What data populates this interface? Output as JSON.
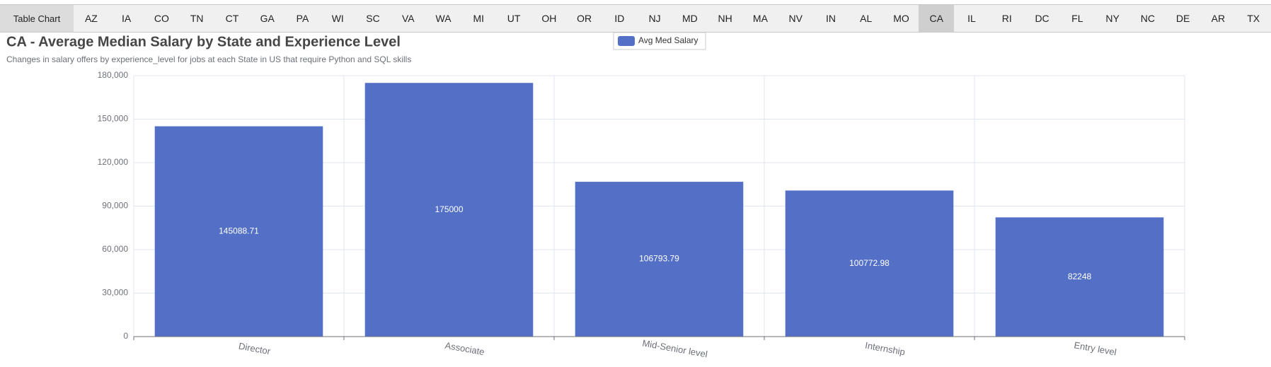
{
  "tabs": {
    "first_label": "Table Chart",
    "states": [
      "AZ",
      "IA",
      "CO",
      "TN",
      "CT",
      "GA",
      "PA",
      "WI",
      "SC",
      "VA",
      "WA",
      "MI",
      "UT",
      "OH",
      "OR",
      "ID",
      "NJ",
      "MD",
      "NH",
      "MA",
      "NV",
      "IN",
      "AL",
      "MO",
      "CA",
      "IL",
      "RI",
      "DC",
      "FL",
      "NY",
      "NC",
      "DE",
      "AR",
      "TX"
    ],
    "active": "CA"
  },
  "chart_data": {
    "type": "bar",
    "title": "CA - Average Median Salary by State and Experience Level",
    "subtitle": "Changes in salary offers by experience_level for jobs at each State in US that require Python and SQL skills",
    "categories": [
      "Director",
      "Associate",
      "Mid-Senior level",
      "Internship",
      "Entry level"
    ],
    "series": [
      {
        "name": "Avg Med Salary",
        "values": [
          145088.71,
          175000,
          106793.79,
          100772.98,
          82248
        ],
        "color": "#5470c6"
      }
    ],
    "data_labels": [
      "145088.71",
      "175000",
      "106793.79",
      "100772.98",
      "82248"
    ],
    "ylim": [
      0,
      180000
    ],
    "yticks": [
      0,
      30000,
      60000,
      90000,
      120000,
      150000,
      180000
    ],
    "ytick_labels": [
      "0",
      "30,000",
      "60,000",
      "90,000",
      "120,000",
      "150,000",
      "180,000"
    ],
    "grid": true,
    "legend_position": "top-center"
  }
}
